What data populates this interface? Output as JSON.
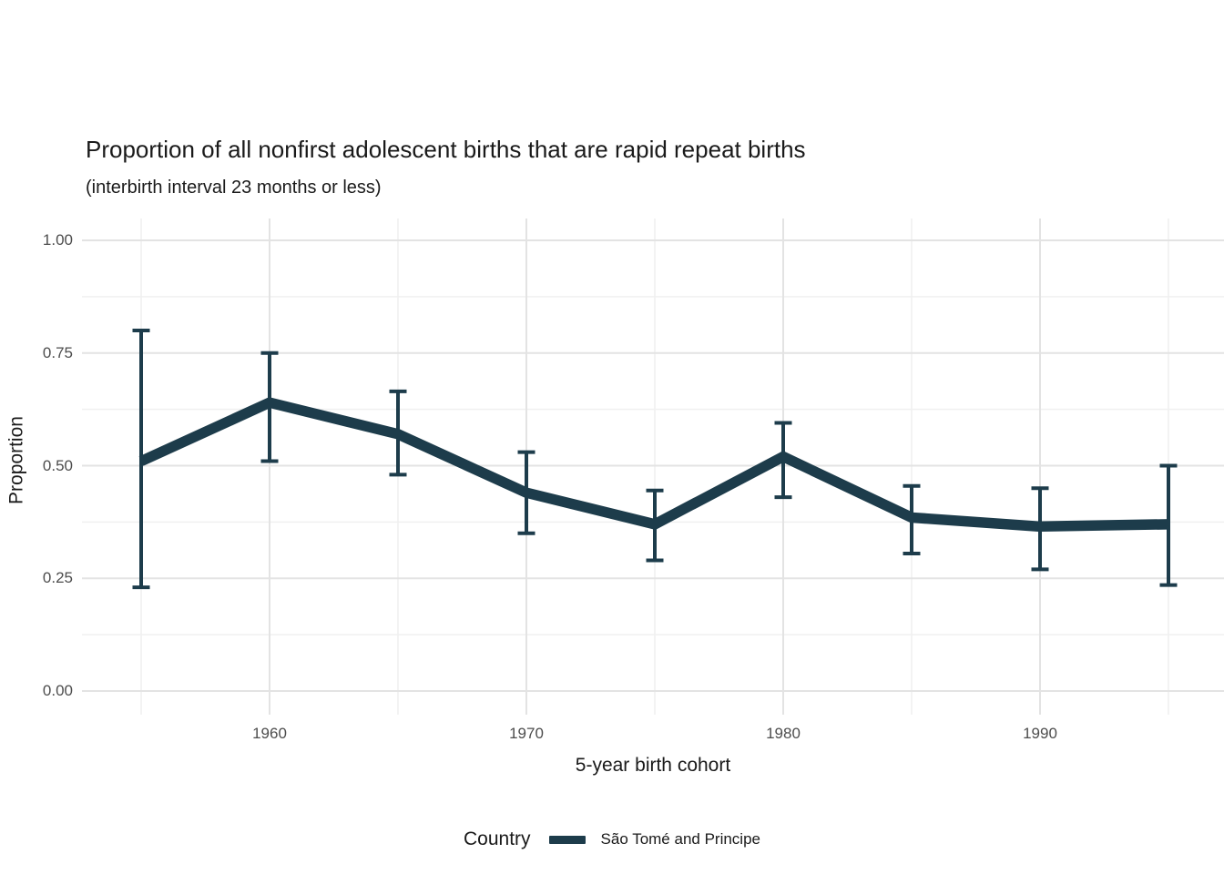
{
  "title": "Proportion of all nonfirst adolescent births that are rapid repeat births",
  "subtitle": "(interbirth interval 23 months or less)",
  "chart_data": {
    "type": "line",
    "x": [
      1955,
      1960,
      1965,
      1970,
      1975,
      1980,
      1985,
      1990,
      1995
    ],
    "series": [
      {
        "name": "São Tomé and Principe",
        "values": [
          0.51,
          0.64,
          0.57,
          0.44,
          0.37,
          0.52,
          0.385,
          0.365,
          0.37
        ],
        "ci_low": [
          0.23,
          0.51,
          0.48,
          0.35,
          0.29,
          0.43,
          0.305,
          0.27,
          0.235
        ],
        "ci_high": [
          0.8,
          0.75,
          0.665,
          0.53,
          0.445,
          0.595,
          0.455,
          0.45,
          0.5
        ]
      }
    ],
    "title": "Proportion of all nonfirst adolescent births that are rapid repeat births",
    "subtitle": "(interbirth interval 23 months or less)",
    "xlabel": "5-year birth cohort",
    "ylabel": "Proportion",
    "xticks": [
      1960,
      1970,
      1980,
      1990
    ],
    "x_minor": [
      1955,
      1965,
      1975,
      1985,
      1995
    ],
    "ytick_labels": [
      "0.00",
      "0.25",
      "0.50",
      "0.75",
      "1.00"
    ],
    "ytick_values": [
      0,
      0.25,
      0.5,
      0.75,
      1
    ],
    "y_minor": [
      0.125,
      0.375,
      0.625,
      0.875
    ],
    "ylim": [
      0,
      1
    ],
    "grid": "major and minor, light gray on white",
    "legend_position": "bottom",
    "error_bars": true,
    "colors": {
      "line": "#1d3c4b",
      "grid_major": "#e3e3e3",
      "grid_minor": "#f0f0f0",
      "text": "#1a1a1a",
      "tick_text": "#4d4d4d",
      "background": "#ffffff"
    }
  },
  "legend": {
    "title": "Country",
    "items": [
      {
        "label": "São Tomé and Principe",
        "color": "#1d3c4b"
      }
    ]
  }
}
